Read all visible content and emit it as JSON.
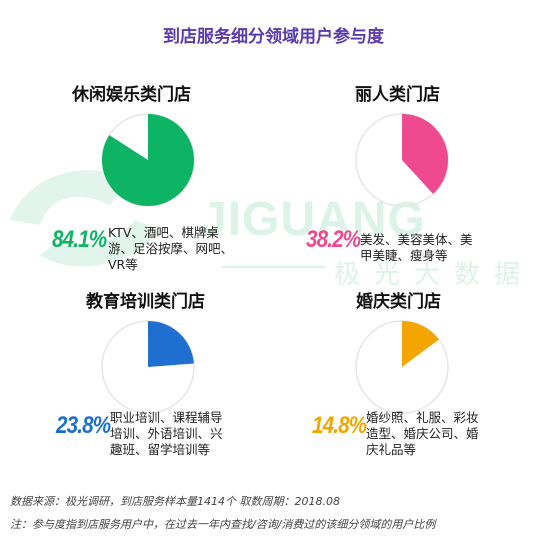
{
  "title": "到店服务细分领域用户参与度",
  "watermark": {
    "brand": "JIGUANG",
    "subtitle": "极光大数据"
  },
  "chart_data": {
    "type": "pie",
    "title": "到店服务细分领域用户参与度",
    "unit": "%",
    "charts": [
      {
        "name": "休闲娱乐类门店",
        "value": 84.1,
        "label": "84.1%",
        "color": "#0db463",
        "description": [
          "KTV、酒吧、棋牌桌",
          "游、足浴按摩、网吧、",
          "VR等"
        ]
      },
      {
        "name": "丽人类门店",
        "value": 38.2,
        "label": "38.2%",
        "color": "#ef4a8f",
        "description": [
          "美发、美容美体、美",
          "甲美睫、瘦身等"
        ]
      },
      {
        "name": "教育培训类门店",
        "value": 23.8,
        "label": "23.8%",
        "color": "#1f6fd1",
        "description": [
          "职业培训、课程辅导",
          "培训、外语培训、兴",
          "趣班、留学培训等"
        ]
      },
      {
        "name": "婚庆类门店",
        "value": 14.8,
        "label": "14.8%",
        "color": "#f5a500",
        "description": [
          "婚纱照、礼服、彩妆",
          "造型、婚庆公司、婚",
          "庆礼品等"
        ]
      }
    ]
  },
  "footer": {
    "source": "数据来源：极光调研，到店服务样本量1414个     取数周期：2018.08",
    "note": "注：参与度指到店服务用户中，在过去一年内查找/咨询/消费过的该细分领域的用户比例"
  }
}
